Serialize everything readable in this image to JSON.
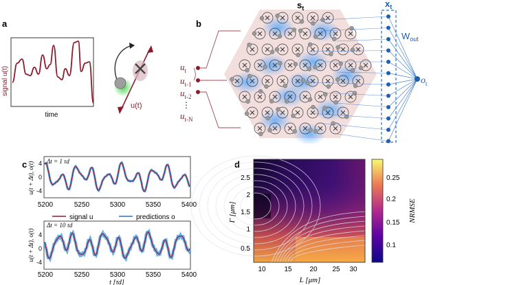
{
  "panels": {
    "a": {
      "letter": "a",
      "ylabel": "signal u(t)",
      "xlabel": "time",
      "arrow_label": "u(t)"
    },
    "b": {
      "letter": "b",
      "state_label": "s",
      "state_sub": "t",
      "readout_label": "x",
      "readout_sub": "t",
      "weight_label": "W",
      "weight_sub": "out",
      "output_label": "o",
      "output_sub": "t",
      "inputs": [
        {
          "main": "u",
          "sub": "t"
        },
        {
          "main": "u",
          "sub": "t-1"
        },
        {
          "main": "u",
          "sub": "t-2"
        },
        {
          "main": "⋮",
          "sub": ""
        },
        {
          "main": "u",
          "sub": "t-N"
        }
      ]
    },
    "c": {
      "letter": "c",
      "ylabel": "u(t + Δt), o(t)",
      "xticks": [
        "5200",
        "5250",
        "5300",
        "5350",
        "5400"
      ],
      "xlabel": "t [τd]",
      "top_annotation": "Δt = 1 τd",
      "bottom_annotation": "Δt = 10 τd",
      "yticks": [
        "4",
        "0",
        "-4"
      ],
      "legend": [
        {
          "label": "signal u",
          "color": "#8b1a2b"
        },
        {
          "label": "predictions o",
          "color": "#2a6fc9"
        }
      ]
    },
    "d": {
      "letter": "d",
      "ylabel": "Γ [μm]",
      "xlabel": "L [μm]",
      "xticks": [
        "10",
        "15",
        "20",
        "25",
        "30"
      ],
      "yticks": [
        "2.5",
        "2",
        "1.5",
        "1",
        "0.5"
      ],
      "colorbar_label": "NRMSE",
      "colorbar_ticks": [
        "0.25",
        "0.2",
        "0.15",
        "0.1"
      ]
    }
  },
  "colors": {
    "signal": "#8b1a2b",
    "prediction": "#2a6fc9",
    "network": "#1f5fb3",
    "reservoir_bg": "#f3dede"
  }
}
